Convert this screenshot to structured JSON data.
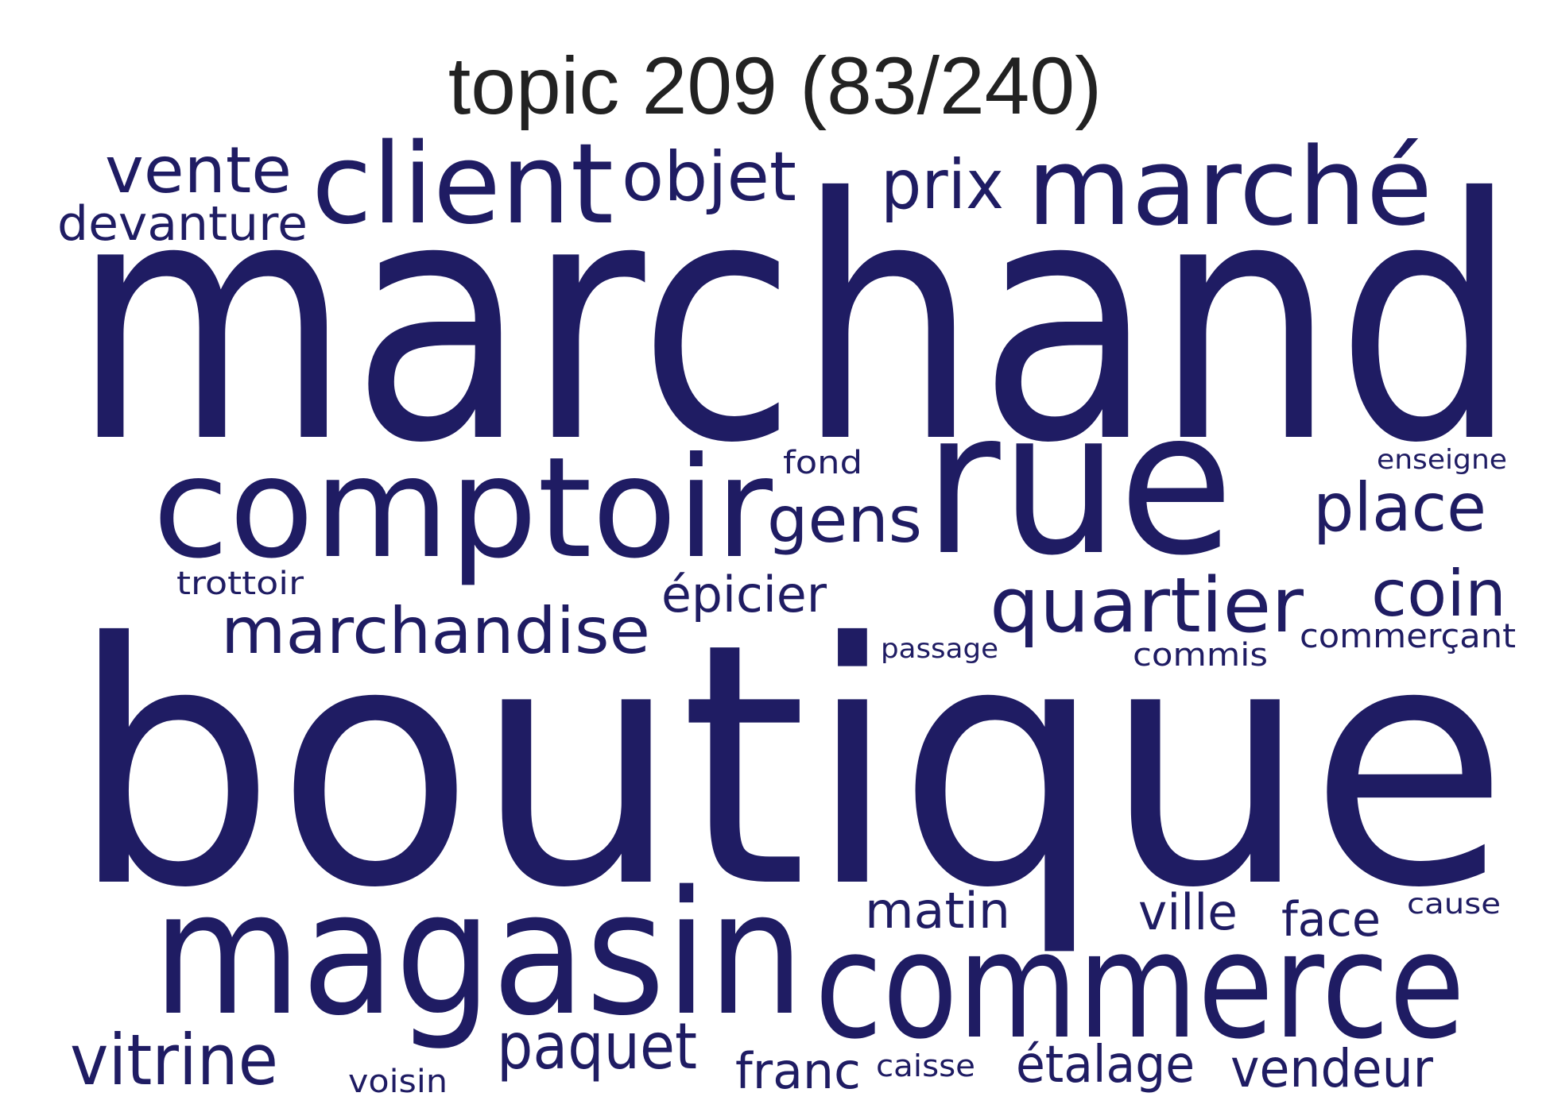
{
  "title": "topic 209 (83/240)",
  "word_color": "#1f1c63",
  "words": [
    {
      "text": "marchand"
    },
    {
      "text": "boutique"
    },
    {
      "text": "rue"
    },
    {
      "text": "magasin"
    },
    {
      "text": "commerce"
    },
    {
      "text": "comptoir"
    },
    {
      "text": "client"
    },
    {
      "text": "marché"
    },
    {
      "text": "quartier"
    },
    {
      "text": "marchandise"
    },
    {
      "text": "vente"
    },
    {
      "text": "objet"
    },
    {
      "text": "prix"
    },
    {
      "text": "devanture"
    },
    {
      "text": "place"
    },
    {
      "text": "gens"
    },
    {
      "text": "coin"
    },
    {
      "text": "vitrine"
    },
    {
      "text": "paquet"
    },
    {
      "text": "épicier"
    },
    {
      "text": "matin"
    },
    {
      "text": "ville"
    },
    {
      "text": "face"
    },
    {
      "text": "étalage"
    },
    {
      "text": "vendeur"
    },
    {
      "text": "franc"
    },
    {
      "text": "fond"
    },
    {
      "text": "trottoir"
    },
    {
      "text": "commerçant"
    },
    {
      "text": "commis"
    },
    {
      "text": "passage"
    },
    {
      "text": "enseigne"
    },
    {
      "text": "cause"
    },
    {
      "text": "caisse"
    },
    {
      "text": "voisin"
    }
  ]
}
